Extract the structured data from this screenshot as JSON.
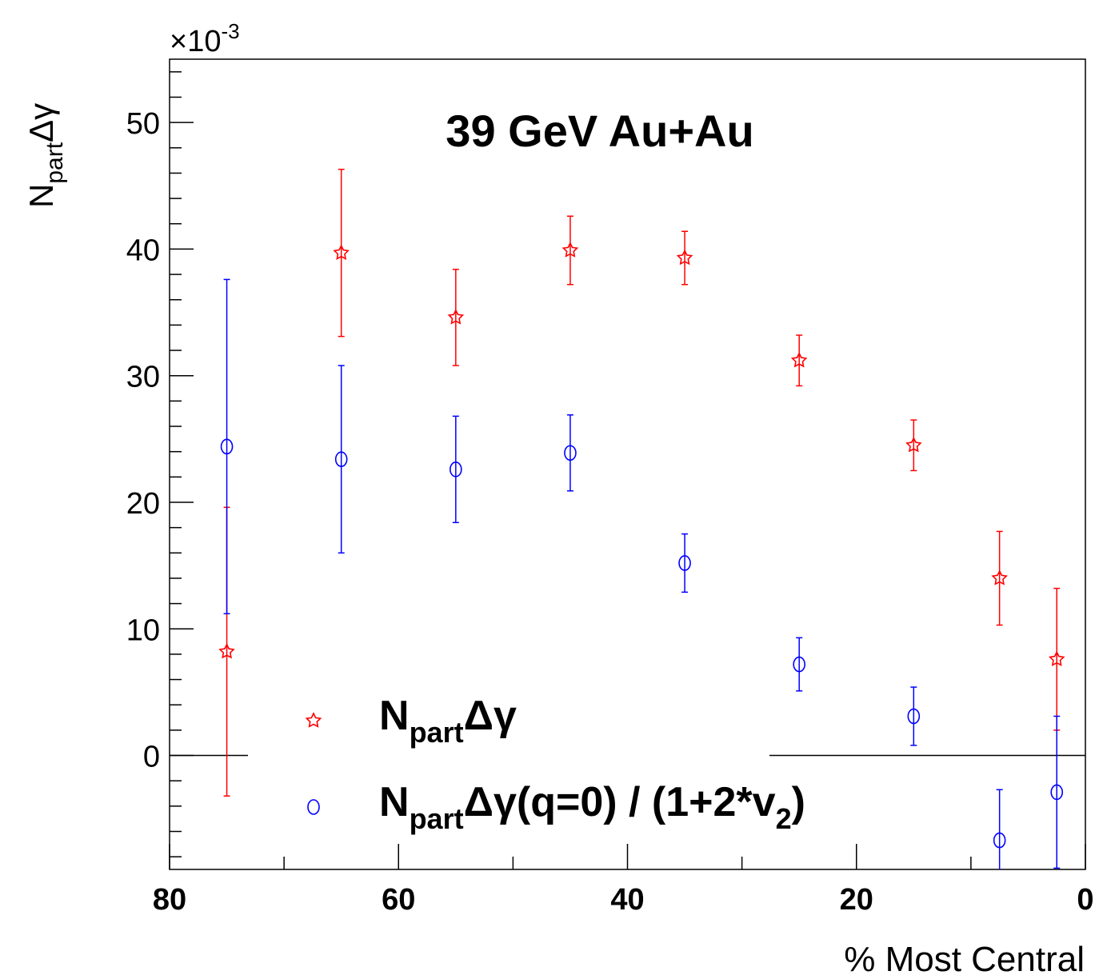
{
  "chart_data": {
    "type": "scatter",
    "title": "39 GeV Au+Au",
    "xlabel": "% Most Central",
    "ylabel": {
      "main": "N",
      "sub": "part",
      "tail": "Δγ"
    },
    "y_multiplier": {
      "base": "×10",
      "exp": "-3"
    },
    "xlim": [
      80,
      0
    ],
    "ylim": [
      -9,
      55
    ],
    "x_ticks": [
      80,
      60,
      40,
      20,
      0
    ],
    "y_ticks": [
      0,
      10,
      20,
      30,
      40,
      50
    ],
    "legend_position": "bottom-center",
    "series": [
      {
        "name": {
          "main": "N",
          "sub": "part",
          "tail": "Δγ"
        },
        "marker": "open-star",
        "color": "#ff0000",
        "points": [
          {
            "x": 75,
            "y": 8.2,
            "err": 11.4
          },
          {
            "x": 65,
            "y": 39.7,
            "err": 6.6
          },
          {
            "x": 55,
            "y": 34.6,
            "err": 3.8
          },
          {
            "x": 45,
            "y": 39.9,
            "err": 2.7
          },
          {
            "x": 35,
            "y": 39.3,
            "err": 2.1
          },
          {
            "x": 25,
            "y": 31.2,
            "err": 2.0
          },
          {
            "x": 15,
            "y": 24.5,
            "err": 2.0
          },
          {
            "x": 7.5,
            "y": 14.0,
            "err": 3.7
          },
          {
            "x": 2.5,
            "y": 7.6,
            "err": 5.6
          }
        ]
      },
      {
        "name": {
          "main": "N",
          "sub": "part",
          "tail": "Δγ(q=0) / (1+2*v",
          "sub2": "2",
          "close": ")"
        },
        "marker": "open-circle",
        "color": "#0000ff",
        "points": [
          {
            "x": 75,
            "y": 24.4,
            "err": 13.2
          },
          {
            "x": 65,
            "y": 23.4,
            "err": 7.4
          },
          {
            "x": 55,
            "y": 22.6,
            "err": 4.2
          },
          {
            "x": 45,
            "y": 23.9,
            "err": 3.0
          },
          {
            "x": 35,
            "y": 15.2,
            "err": 2.3
          },
          {
            "x": 25,
            "y": 7.2,
            "err": 2.1
          },
          {
            "x": 15,
            "y": 3.1,
            "err": 2.3
          },
          {
            "x": 7.5,
            "y": -6.7,
            "err": 4.0
          },
          {
            "x": 2.5,
            "y": -2.9,
            "err": 6.0
          }
        ]
      }
    ]
  }
}
